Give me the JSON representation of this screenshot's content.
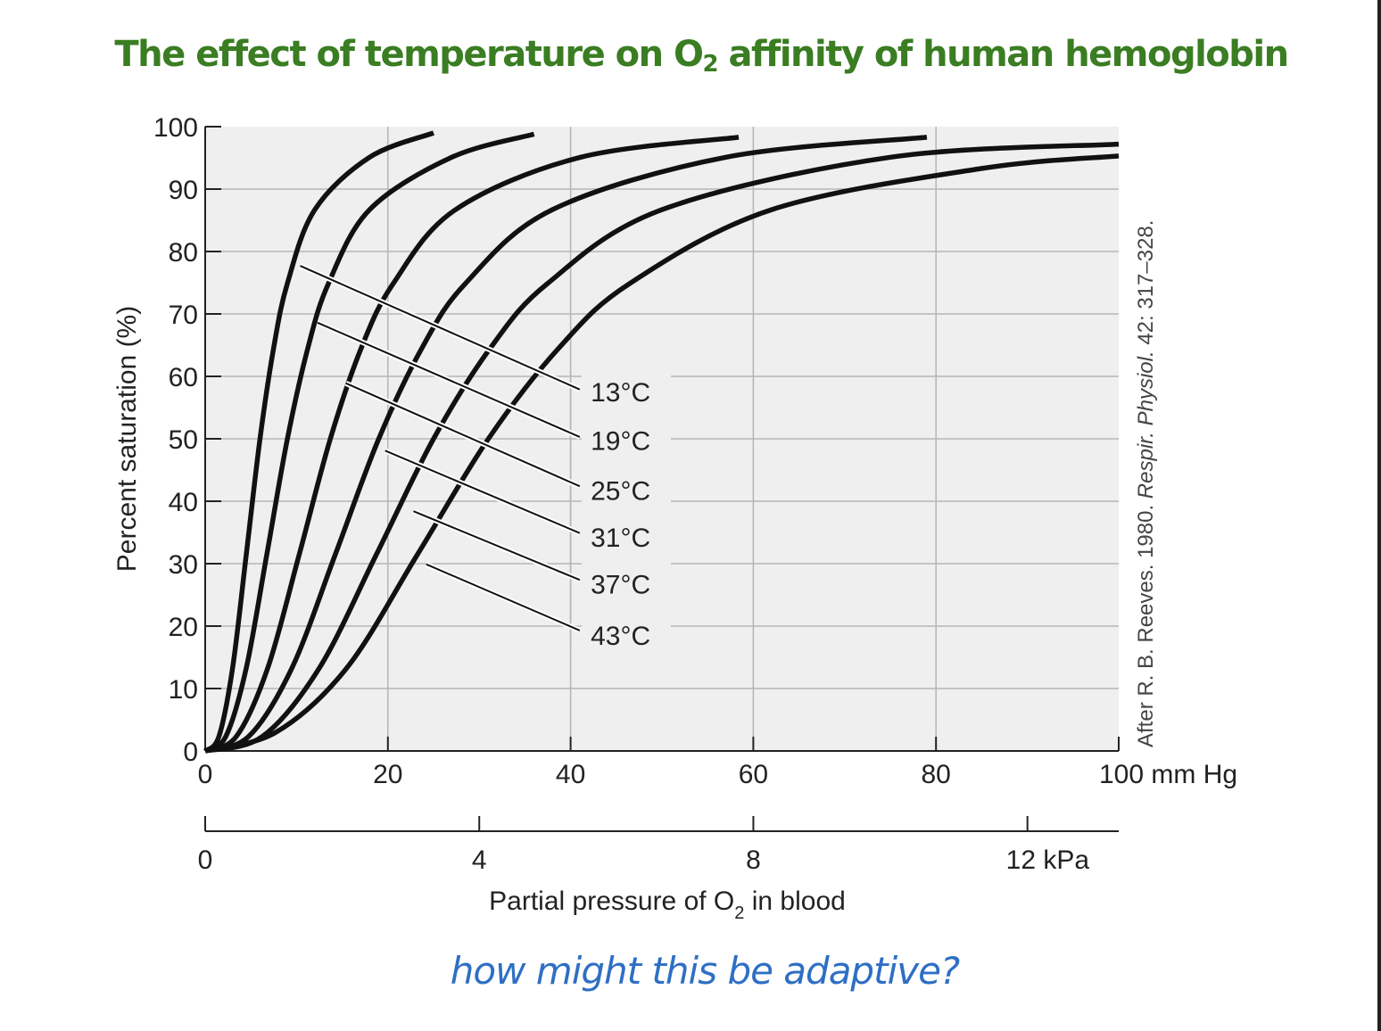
{
  "title": {
    "text": "The effect of temperature on O",
    "sub": "2",
    "rest": " affinity of human hemoglobin"
  },
  "question": "how might this be adaptive?",
  "source": {
    "pre": "After R. B. Reeves. 1980. ",
    "journal": "Respir. Physiol.",
    "post": " 42: 317–328."
  },
  "chart_data": {
    "type": "line",
    "ylabel": "Percent saturation (%)",
    "xlabel": {
      "pre": "Partial pressure of O",
      "sub": "2",
      "post": " in blood"
    },
    "xlim": [
      0,
      100
    ],
    "ylim": [
      0,
      100
    ],
    "grid": true,
    "x_ticks": [
      "0",
      "20",
      "40",
      "60",
      "80",
      "100 mm Hg"
    ],
    "x_tick_values": [
      0,
      20,
      40,
      60,
      80,
      100
    ],
    "y_ticks": [
      "0",
      "10",
      "20",
      "30",
      "40",
      "50",
      "60",
      "70",
      "80",
      "90",
      "100"
    ],
    "y_tick_values": [
      0,
      10,
      20,
      30,
      40,
      50,
      60,
      70,
      80,
      90,
      100
    ],
    "secondary_x_axis": {
      "unit": "kPa",
      "ticks": [
        "0",
        "4",
        "8",
        "12 kPa"
      ],
      "tick_values": [
        0,
        4,
        8,
        12
      ]
    },
    "colors": {
      "line": "#111111",
      "plot_bg": "#efefef",
      "grid": "#b5b5b5"
    },
    "series": [
      {
        "name": "13°C",
        "points": [
          [
            0,
            0
          ],
          [
            1.5,
            2.3
          ],
          [
            3,
            13.3
          ],
          [
            4.5,
            31.5
          ],
          [
            6,
            50
          ],
          [
            7.5,
            64.6
          ],
          [
            9,
            74.9
          ],
          [
            12,
            86.7
          ],
          [
            18,
            95.1
          ],
          [
            25,
            99
          ]
        ],
        "label_at": [
          42,
          57.7
        ],
        "leader": [
          [
            10.4,
            77.7
          ],
          [
            41,
            57.9
          ]
        ]
      },
      {
        "name": "19°C",
        "points": [
          [
            0,
            0
          ],
          [
            2.25,
            2.3
          ],
          [
            4.5,
            13.3
          ],
          [
            6.75,
            31.5
          ],
          [
            9,
            50
          ],
          [
            11.25,
            64.6
          ],
          [
            13.5,
            74.9
          ],
          [
            18,
            86.7
          ],
          [
            27,
            95.1
          ],
          [
            36,
            98.8
          ]
        ],
        "label_at": [
          42,
          49.9
        ],
        "leader": [
          [
            12.3,
            68.6
          ],
          [
            41,
            50.3
          ]
        ]
      },
      {
        "name": "25°C",
        "points": [
          [
            0,
            0
          ],
          [
            3.4,
            2.3
          ],
          [
            6.85,
            13.3
          ],
          [
            10.3,
            31.5
          ],
          [
            13.7,
            50
          ],
          [
            17.1,
            64.6
          ],
          [
            20.6,
            74.9
          ],
          [
            27.4,
            86.7
          ],
          [
            41.1,
            95.1
          ],
          [
            58.4,
            98.3
          ]
        ],
        "label_at": [
          42,
          41.9
        ],
        "leader": [
          [
            15.4,
            58.9
          ],
          [
            41,
            42.4
          ]
        ]
      },
      {
        "name": "31°C",
        "points": [
          [
            0,
            0
          ],
          [
            4.75,
            2.3
          ],
          [
            9.5,
            13.3
          ],
          [
            14.25,
            31.5
          ],
          [
            19,
            50
          ],
          [
            23.75,
            64.6
          ],
          [
            28.5,
            74.9
          ],
          [
            38,
            86.7
          ],
          [
            57,
            95.1
          ],
          [
            79,
            98.3
          ]
        ],
        "label_at": [
          42,
          34.4
        ],
        "leader": [
          [
            19.7,
            48.1
          ],
          [
            41,
            34.9
          ]
        ]
      },
      {
        "name": "37°C",
        "points": [
          [
            0,
            0
          ],
          [
            6.25,
            2.3
          ],
          [
            12.5,
            13.3
          ],
          [
            18.75,
            31.5
          ],
          [
            25,
            50
          ],
          [
            31.25,
            64.6
          ],
          [
            37.5,
            74.9
          ],
          [
            50,
            86.7
          ],
          [
            75,
            95.1
          ],
          [
            100,
            97.2
          ]
        ],
        "label_at": [
          42,
          26.9
        ],
        "leader": [
          [
            22.8,
            38.4
          ],
          [
            41,
            27.4
          ]
        ]
      },
      {
        "name": "43°C",
        "points": [
          [
            0,
            0
          ],
          [
            7.75,
            3
          ],
          [
            15.5,
            13.3
          ],
          [
            23.25,
            31.5
          ],
          [
            31,
            50
          ],
          [
            38.75,
            64.6
          ],
          [
            46.5,
            74.9
          ],
          [
            62,
            86.7
          ],
          [
            85,
            93.3
          ],
          [
            100,
            95.3
          ]
        ],
        "label_at": [
          42,
          18.7
        ],
        "leader": [
          [
            24.2,
            29.9
          ],
          [
            41,
            19.3
          ]
        ]
      }
    ]
  }
}
